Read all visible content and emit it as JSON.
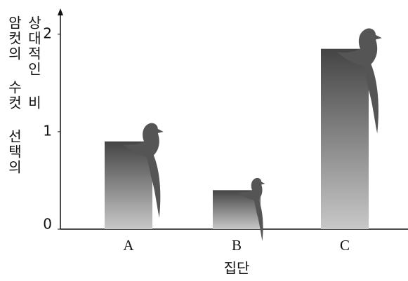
{
  "chart_data": {
    "type": "bar",
    "ylabel": [
      "암컷의 수컷 선택의",
      "상대적인 비"
    ],
    "xlabel": "집단",
    "categories": [
      "A",
      "B",
      "C"
    ],
    "values": [
      0.9,
      0.4,
      1.85
    ],
    "color": "#555555",
    "ylim": [
      0,
      2.2
    ],
    "yticks": [
      0,
      1,
      2
    ]
  }
}
